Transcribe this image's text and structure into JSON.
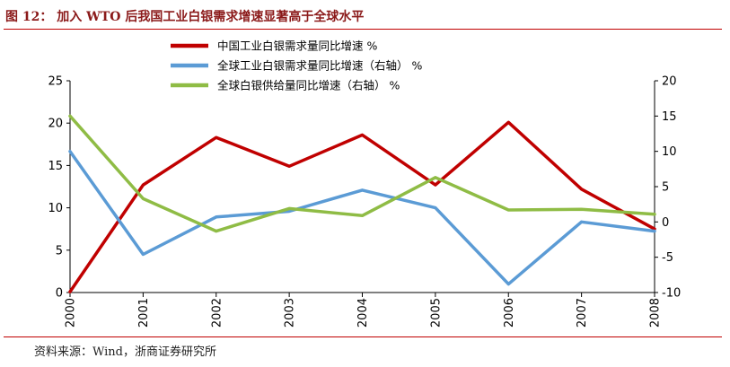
{
  "header": {
    "title": "图 12：  加入 WTO 后我国工业白银需求增速显著高于全球水平"
  },
  "footer": {
    "source": "资料来源：Wind，浙商证券研究所"
  },
  "colors": {
    "china": "#c00000",
    "global_demand": "#5b9bd5",
    "global_supply": "#8fbc45"
  },
  "chart_data": {
    "type": "line",
    "x": [
      "2000",
      "2001",
      "2002",
      "2003",
      "2004",
      "2005",
      "2006",
      "2007",
      "2008"
    ],
    "left_axis": {
      "ylim": [
        0,
        25
      ],
      "ticks": [
        "0",
        "5",
        "10",
        "15",
        "20",
        "25"
      ]
    },
    "right_axis": {
      "ylim": [
        -10,
        20
      ],
      "ticks": [
        "-10",
        "-5",
        "0",
        "5",
        "10",
        "15",
        "20"
      ]
    },
    "series": [
      {
        "name": "中国工业白银需求量同比增速  %",
        "axis": "left",
        "color": "#c00000",
        "values": [
          0.1,
          12.7,
          18.3,
          14.9,
          18.6,
          12.7,
          20.1,
          12.2,
          7.5
        ]
      },
      {
        "name": "全球工业白银需求量同比增速（右轴）  %",
        "axis": "right",
        "color": "#5b9bd5",
        "values": [
          10.0,
          -4.6,
          0.7,
          1.5,
          4.5,
          2.0,
          -8.8,
          0,
          -1.3
        ]
      },
      {
        "name": "全球白银供给量同比增速（右轴）  %",
        "axis": "right",
        "color": "#8fbc45",
        "values": [
          15.0,
          3.3,
          -1.3,
          1.9,
          0.9,
          6.3,
          1.7,
          1.8,
          1.1
        ]
      }
    ],
    "grid": false,
    "legend_position": "top-center"
  }
}
